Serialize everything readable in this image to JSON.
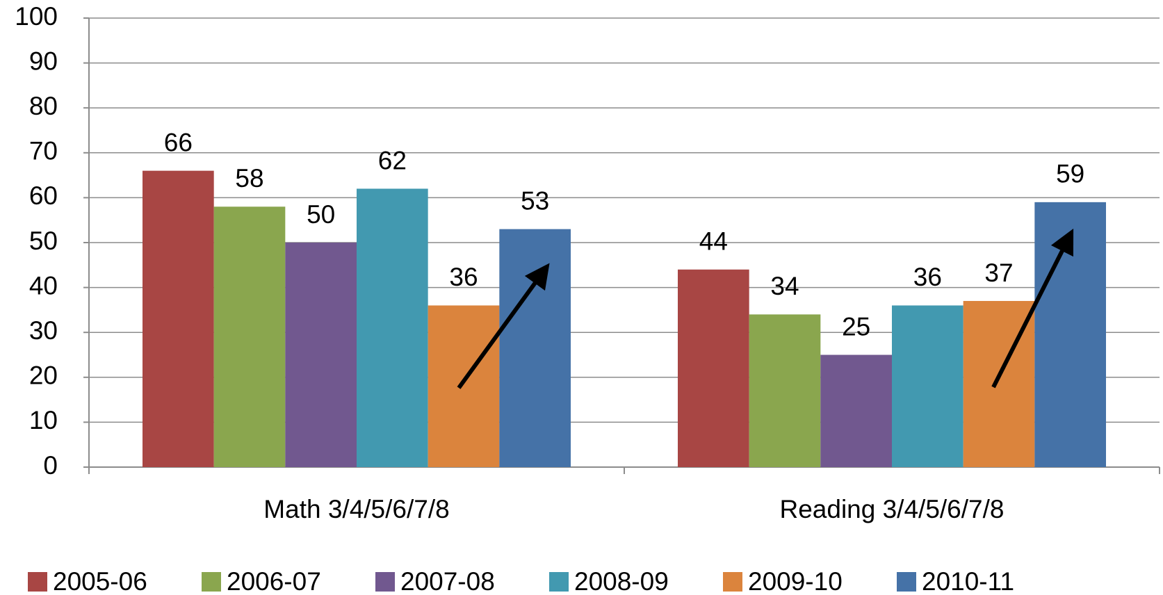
{
  "chart_data": {
    "type": "bar",
    "categories": [
      "Math 3/4/5/6/7/8",
      "Reading 3/4/5/6/7/8"
    ],
    "series": [
      {
        "name": "2005-06",
        "color": "#a84644",
        "values": [
          66,
          44
        ]
      },
      {
        "name": "2006-07",
        "color": "#8aa64e",
        "values": [
          58,
          34
        ]
      },
      {
        "name": "2007-08",
        "color": "#71588f",
        "values": [
          50,
          25
        ]
      },
      {
        "name": "2008-09",
        "color": "#4299b0",
        "values": [
          62,
          36
        ]
      },
      {
        "name": "2009-10",
        "color": "#db843d",
        "values": [
          36,
          37
        ]
      },
      {
        "name": "2010-11",
        "color": "#4572a7",
        "values": [
          53,
          59
        ]
      }
    ],
    "ylim": [
      0,
      100
    ],
    "yticks": [
      0,
      10,
      20,
      30,
      40,
      50,
      60,
      70,
      80,
      90,
      100
    ],
    "grid": true,
    "legend": "bottom"
  }
}
